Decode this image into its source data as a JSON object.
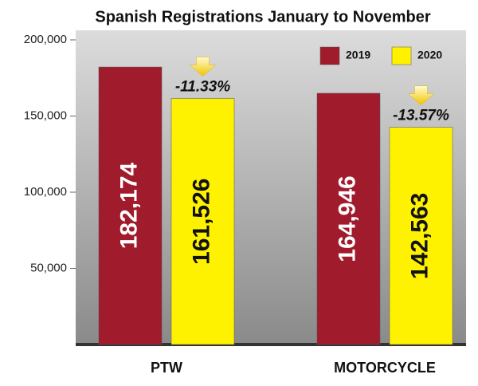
{
  "chart_data": {
    "type": "bar",
    "title": "Spanish Registrations January to November",
    "categories": [
      "PTW",
      "MOTORCYCLE"
    ],
    "series": [
      {
        "name": "2019",
        "color": "#a01b2b",
        "values": [
          182174,
          164946
        ],
        "value_labels": [
          "182,174",
          "164,946"
        ]
      },
      {
        "name": "2020",
        "color": "#fff200",
        "values": [
          161526,
          142563
        ],
        "value_labels": [
          "161,526",
          "142,563"
        ]
      }
    ],
    "annotations": [
      "-11.33%",
      "-13.57%"
    ],
    "ylim": [
      0,
      200000
    ],
    "yticks": [
      {
        "value": 50000,
        "label": "50,000"
      },
      {
        "value": 100000,
        "label": "100,000"
      },
      {
        "value": 150000,
        "label": "150,000"
      },
      {
        "value": 200000,
        "label": "200,000"
      }
    ],
    "grid": false,
    "legend": "top-right"
  }
}
